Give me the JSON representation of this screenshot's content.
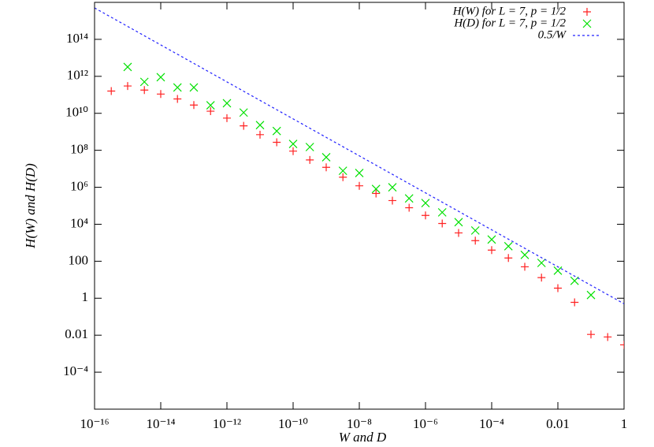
{
  "chart_data": {
    "type": "scatter",
    "xlabel": "W and D",
    "ylabel": "H(W) and H(D)",
    "xlog": true,
    "ylog": true,
    "xlim": [
      1e-16,
      1
    ],
    "ylim": [
      1e-06,
      1e+16
    ],
    "xticks": [
      {
        "value": 1e-16,
        "label": "10⁻¹⁶"
      },
      {
        "value": 1e-14,
        "label": "10⁻¹⁴"
      },
      {
        "value": 1e-12,
        "label": "10⁻¹²"
      },
      {
        "value": 1e-10,
        "label": "10⁻¹⁰"
      },
      {
        "value": 1e-08,
        "label": "10⁻⁸"
      },
      {
        "value": 1e-06,
        "label": "10⁻⁶"
      },
      {
        "value": 0.0001,
        "label": "10⁻⁴"
      },
      0.01,
      1
    ],
    "yticks": [
      {
        "value": 0.0001,
        "label": "10⁻⁴"
      },
      0.01,
      1,
      100,
      {
        "value": 10000.0,
        "label": "10⁴"
      },
      {
        "value": 1000000.0,
        "label": "10⁶"
      },
      {
        "value": 100000000.0,
        "label": "10⁸"
      },
      {
        "value": 10000000000.0,
        "label": "10¹⁰"
      },
      {
        "value": 1000000000000.0,
        "label": "10¹²"
      },
      {
        "value": 100000000000000.0,
        "label": "10¹⁴"
      }
    ],
    "legend": "top-right",
    "series": [
      {
        "name": "H(W) for L = 7, p = 1/2",
        "color": "#ff2020",
        "marker": "plus",
        "x": [
          3.2e-16,
          1e-15,
          3.2e-15,
          1e-14,
          3.2e-14,
          1e-13,
          3.2e-13,
          1e-12,
          3.2e-12,
          1e-11,
          3.2e-11,
          1e-10,
          3.2e-10,
          1e-09,
          3.2e-09,
          1e-08,
          3.2e-08,
          1e-07,
          3.2e-07,
          1e-06,
          3.2e-06,
          1e-05,
          3.2e-05,
          0.0001,
          0.00032,
          0.001,
          0.0032,
          0.01,
          0.032,
          0.1,
          0.32,
          1
        ],
        "values": [
          160000000000.0,
          300000000000.0,
          180000000000.0,
          110000000000.0,
          60000000000.0,
          28000000000.0,
          13000000000.0,
          5500000000.0,
          2100000000.0,
          700000000.0,
          270000000.0,
          90000000.0,
          30000000.0,
          12000000.0,
          3500000.0,
          1200000.0,
          460000.0,
          190000.0,
          78000.0,
          30000.0,
          11000.0,
          3400,
          1300,
          400,
          150,
          50,
          13,
          3.5,
          0.6,
          0.011,
          0.008,
          0.003
        ]
      },
      {
        "name": "H(D) for L = 7, p = 1/2",
        "color": "#00e000",
        "marker": "cross",
        "x": [
          1e-15,
          3.2e-15,
          1e-14,
          3.2e-14,
          1e-13,
          3.2e-13,
          1e-12,
          3.2e-12,
          1e-11,
          3.2e-11,
          1e-10,
          3.2e-10,
          1e-09,
          3.2e-09,
          1e-08,
          3.2e-08,
          1e-07,
          3.2e-07,
          1e-06,
          3.2e-06,
          1e-05,
          3.2e-05,
          0.0001,
          0.00032,
          0.001,
          0.0032,
          0.01,
          0.032,
          0.1
        ],
        "values": [
          3200000000000.0,
          500000000000.0,
          900000000000.0,
          250000000000.0,
          250000000000.0,
          27000000000.0,
          35000000000.0,
          11000000000.0,
          2300000000.0,
          1100000000.0,
          220000000.0,
          150000000.0,
          42000000.0,
          7800000.0,
          5900000.0,
          810000.0,
          1000000.0,
          250000.0,
          140000.0,
          44000.0,
          13000.0,
          4600,
          1500,
          650,
          220,
          81,
          31,
          8.7,
          1.5
        ]
      },
      {
        "name": "0.5/W",
        "color": "#2020ff",
        "marker": "line",
        "x": [
          1e-16,
          1
        ],
        "values": [
          5000000000000000.0,
          0.5
        ]
      }
    ]
  }
}
